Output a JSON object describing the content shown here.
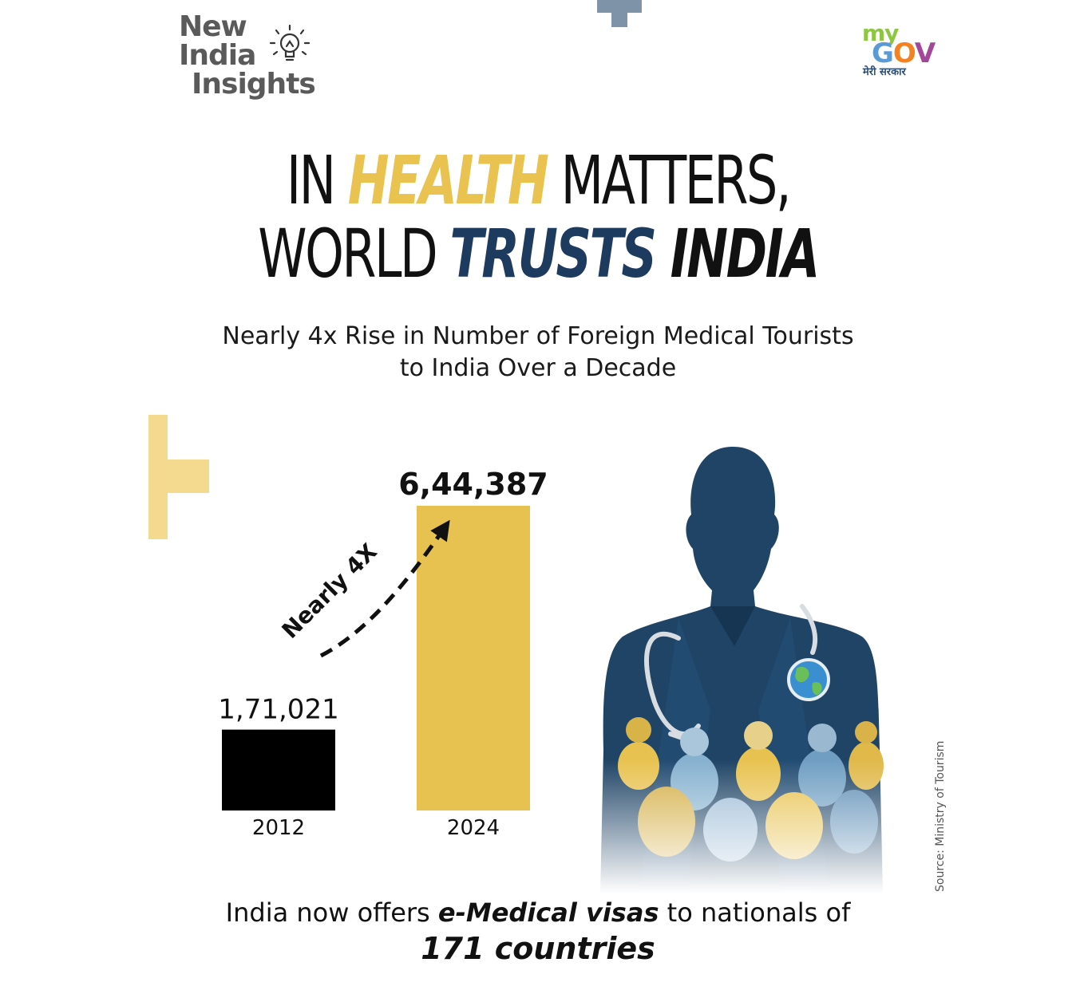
{
  "brand": {
    "left_logo_lines": [
      "New",
      "India",
      "Insights"
    ],
    "right_logo_my": "my",
    "right_logo_gov": [
      "G",
      "O",
      "V"
    ],
    "right_logo_tagline": "मेरी सरकार"
  },
  "title": {
    "line1_part1": "IN ",
    "line1_highlight": "HEALTH",
    "line1_part2": " MATTERS,",
    "line2_part1": "WORLD ",
    "line2_highlight": "TRUSTS",
    "line2_part2": " INDIA",
    "colors": {
      "highlight1": "#e9c24f",
      "highlight2": "#1d3a5f",
      "dark": "#111111"
    }
  },
  "subtitle": {
    "line1": "Nearly 4x Rise in Number of Foreign Medical Tourists",
    "line2": "to India Over a Decade"
  },
  "chart_data": {
    "type": "bar",
    "categories": [
      "2012",
      "2024"
    ],
    "values": [
      171021,
      644387
    ],
    "value_labels": [
      "1,71,021",
      "6,44,387"
    ],
    "bar_colors": [
      "#000000",
      "#e8c250"
    ],
    "annotation": "Nearly 4X",
    "title": "",
    "xlabel": "",
    "ylabel": "",
    "grid": false,
    "ylim": [
      0,
      644387
    ]
  },
  "source": "Source: Ministry of Tourism",
  "footer": {
    "line1_part1": "India now offers ",
    "line1_em": "e-Medical visas",
    "line1_part2": " to nationals of",
    "line2": "171 countries"
  },
  "icons": [
    "bulb-icon",
    "doctor-illustration",
    "globe-icon",
    "stethoscope-icon"
  ]
}
